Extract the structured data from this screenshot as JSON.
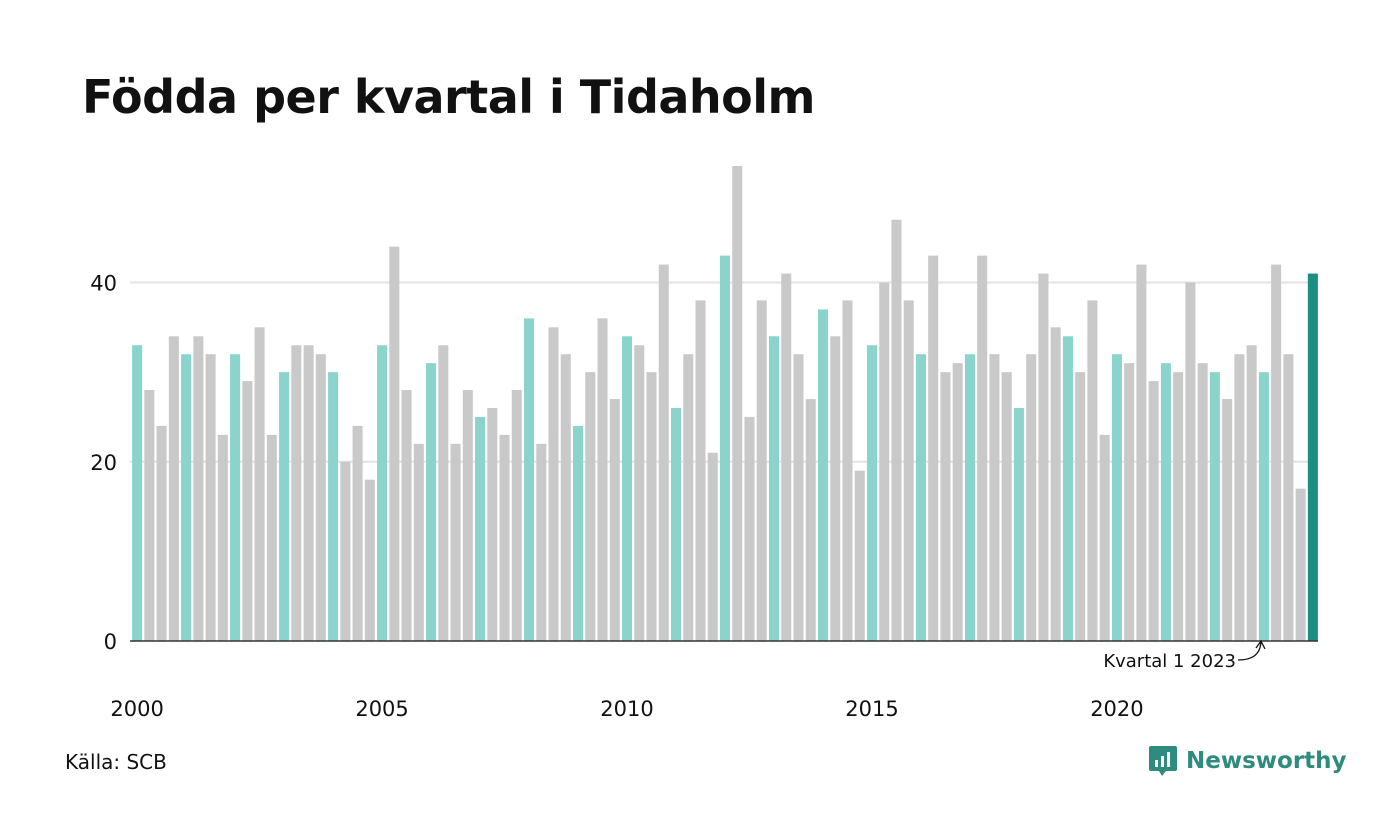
{
  "title": "Födda per kvartal i Tidaholm",
  "source": "Källa: SCB",
  "brand": {
    "name": "Newsworthy",
    "icon": "newsworthy-logo-icon"
  },
  "colors": {
    "q1": "#8ad4cc",
    "other": "#c9c9c9",
    "highlight": "#1a8f82",
    "grid": "#e3e3e3",
    "axis": "#333333",
    "brand": "#2e8b7d"
  },
  "chart_data": {
    "type": "bar",
    "title": "Födda per kvartal i Tidaholm",
    "xlabel": "",
    "ylabel": "",
    "ylim": [
      0,
      53
    ],
    "yticks": [
      0,
      20,
      40
    ],
    "xticks": [
      "2000",
      "2005",
      "2010",
      "2015",
      "2020"
    ],
    "grid": true,
    "start": "2000 Q1",
    "end": "2023 Q1",
    "values": [
      33,
      28,
      24,
      34,
      32,
      34,
      32,
      23,
      32,
      29,
      35,
      23,
      30,
      33,
      33,
      32,
      30,
      20,
      24,
      18,
      33,
      44,
      28,
      22,
      31,
      33,
      22,
      28,
      25,
      26,
      23,
      28,
      36,
      22,
      35,
      32,
      24,
      30,
      36,
      27,
      34,
      33,
      30,
      42,
      26,
      32,
      38,
      21,
      43,
      53,
      25,
      38,
      34,
      41,
      32,
      27,
      37,
      34,
      38,
      19,
      33,
      40,
      47,
      38,
      32,
      43,
      30,
      31,
      32,
      43,
      32,
      30,
      26,
      32,
      41,
      35,
      34,
      30,
      38,
      23,
      32,
      31,
      42,
      29,
      31,
      30,
      40,
      31,
      30,
      27,
      32,
      33,
      30,
      42,
      32,
      17,
      41
    ],
    "annotation": "Kvartal 1 2023"
  }
}
